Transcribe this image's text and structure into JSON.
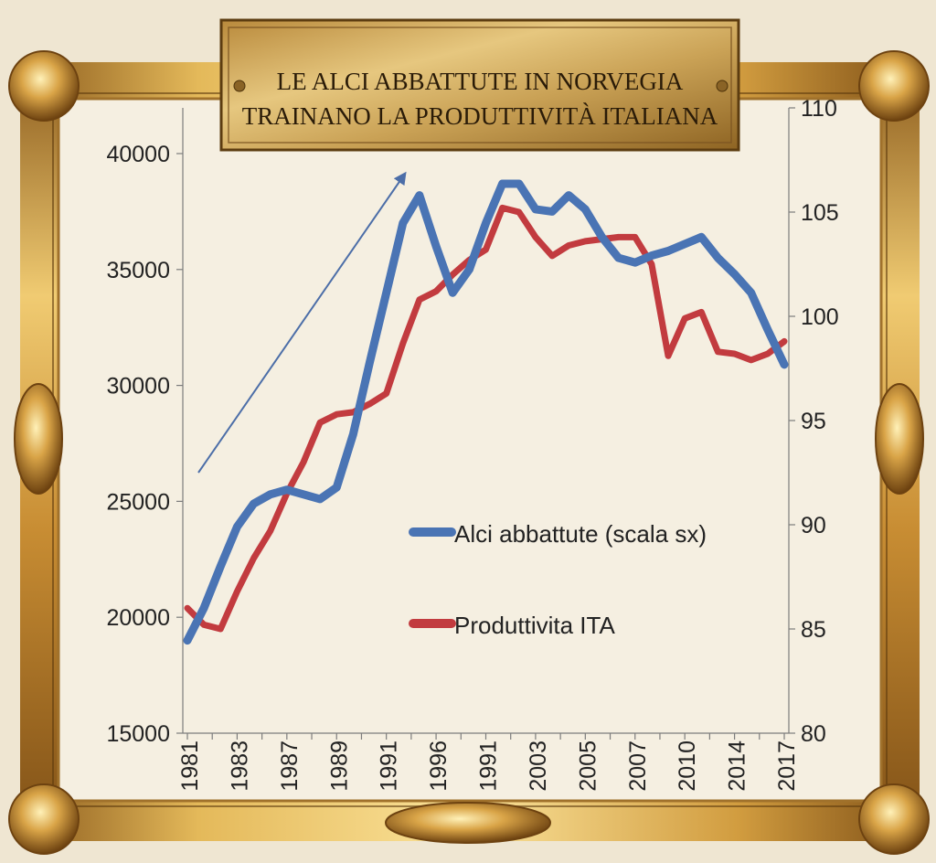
{
  "plaque": {
    "line1": "LE ALCI ABBATTUTE IN NORVEGIA",
    "line2": "TRAINANO LA PRODUTTIVITÀ ITALIANA"
  },
  "chart_data": {
    "type": "line",
    "title": "LE ALCI ABBATTUTE IN NORVEGIA TRAINANO LA PRODUTTIVITÀ ITALIANA",
    "x_tick_labels": [
      "1981",
      "1983",
      "1987",
      "1989",
      "1991",
      "1996",
      "1991",
      "2003",
      "2005",
      "2007",
      "2010",
      "2014",
      "2017"
    ],
    "y_left": {
      "ticks": [
        15000,
        20000,
        25000,
        30000,
        35000,
        40000
      ],
      "range": [
        15000,
        40000
      ]
    },
    "y_right": {
      "ticks": [
        80,
        85,
        90,
        95,
        100,
        105,
        110
      ],
      "range": [
        80,
        110
      ]
    },
    "series": [
      {
        "name": "Alci abbattute (scala sx)",
        "axis": "left",
        "color": "#4a74b4",
        "values": [
          19000,
          20400,
          22200,
          23900,
          24900,
          25300,
          25500,
          25300,
          25100,
          25600,
          27900,
          31000,
          34000,
          37000,
          38200,
          36000,
          34000,
          35000,
          37000,
          38700,
          38700,
          37600,
          37500,
          38200,
          37600,
          36400,
          35500,
          35300,
          35600,
          35800,
          36100,
          36400,
          35500,
          34800,
          34000,
          32400,
          30900
        ]
      },
      {
        "name": "Produttivita ITA",
        "axis": "right",
        "color": "#c23b3f",
        "values": [
          86.0,
          85.2,
          85.0,
          86.8,
          88.4,
          89.7,
          91.5,
          93.0,
          94.9,
          95.3,
          95.4,
          95.8,
          96.3,
          98.7,
          100.8,
          101.2,
          102.0,
          102.7,
          103.2,
          105.2,
          105.0,
          103.8,
          102.9,
          103.4,
          103.6,
          103.7,
          103.8,
          103.8,
          102.5,
          98.1,
          99.9,
          100.2,
          98.3,
          98.2,
          97.9,
          98.2,
          98.8
        ]
      }
    ],
    "legend": "bottom-right",
    "trend_arrow": true,
    "grid": false
  }
}
